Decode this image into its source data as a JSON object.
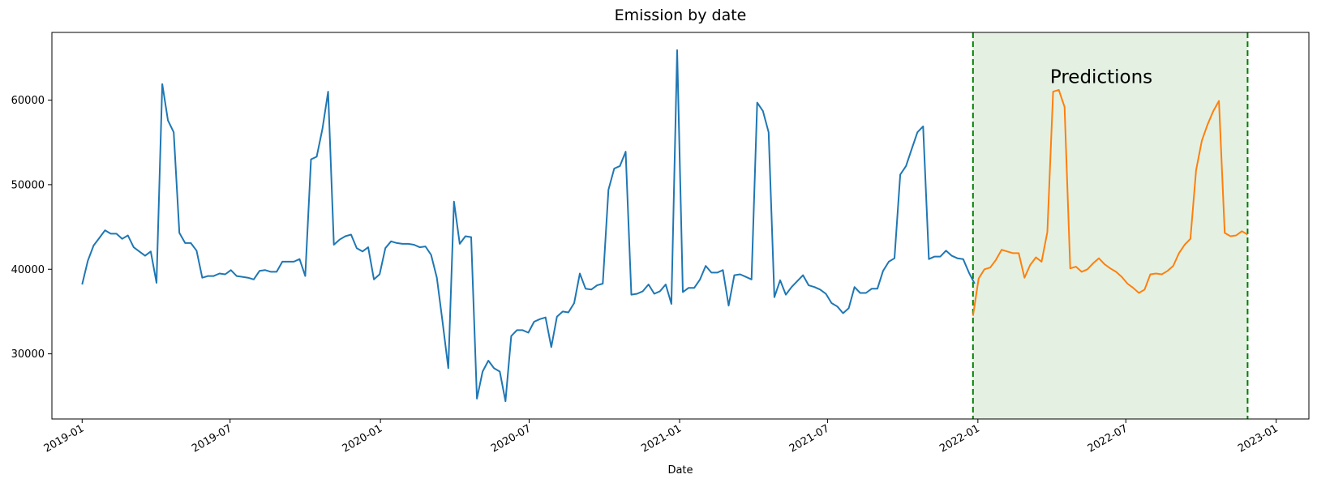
{
  "chart_data": {
    "type": "line",
    "title": "Emission by date",
    "xlabel": "Date",
    "ylabel": "",
    "ylim": [
      22300,
      68000
    ],
    "xlim": [
      "2018-11-25",
      "2023-02-10"
    ],
    "grid": false,
    "x_ticks": [
      "2019-01",
      "2019-07",
      "2020-01",
      "2020-07",
      "2021-01",
      "2021-07",
      "2022-01",
      "2022-07",
      "2023-01"
    ],
    "y_ticks": [
      30000,
      40000,
      50000,
      60000
    ],
    "colors": {
      "actual": "#1f77b4",
      "predicted": "#ff7f0e",
      "shade": "#e4f1e2",
      "vline": "#008000"
    },
    "annotation": {
      "text": "Predictions",
      "x": "2022-06-01",
      "y": 62000
    },
    "prediction_window": [
      "2021-12-26",
      "2022-11-27"
    ],
    "actual": {
      "start": "2019-01-01",
      "interval_days": 7,
      "values": [
        38200,
        41000,
        42800,
        43700,
        44600,
        44200,
        44200,
        43600,
        44000,
        42600,
        42100,
        41600,
        42100,
        38400,
        61900,
        57600,
        56200,
        44300,
        43100,
        43100,
        42200,
        39000,
        39200,
        39200,
        39500,
        39400,
        39900,
        39200,
        39100,
        39000,
        38800,
        39800,
        39900,
        39700,
        39700,
        40900,
        40900,
        40900,
        41200,
        39200,
        53000,
        53300,
        56600,
        61000,
        42900,
        43500,
        43900,
        44100,
        42500,
        42100,
        42600,
        38800,
        39400,
        42500,
        43300,
        43100,
        43000,
        43000,
        42900,
        42600,
        42700,
        41700,
        39000,
        33800,
        28300,
        48000,
        43000,
        43900,
        43800,
        24700,
        27900,
        29200,
        28300,
        27900,
        24400,
        32100,
        32800,
        32800,
        32500,
        33800,
        34100,
        34300,
        30800,
        34400,
        35000,
        34900,
        36000,
        39500,
        37700,
        37600,
        38100,
        38300,
        49400,
        51900,
        52200,
        53900,
        37000,
        37100,
        37400,
        38200,
        37100,
        37400,
        38200,
        35900,
        65900,
        37300,
        37800,
        37800,
        38800,
        40400,
        39600,
        39600,
        39900,
        35700,
        39300,
        39400,
        39100,
        38800,
        59700,
        58700,
        56200,
        36700,
        38700,
        37000,
        37900,
        38600,
        39300,
        38100,
        37900,
        37600,
        37100,
        36000,
        35600,
        34800,
        35400,
        37900,
        37200,
        37200,
        37700,
        37700,
        39800,
        40900,
        41300,
        51200,
        52200,
        54200,
        56200,
        56900,
        41200,
        41500,
        41500,
        42200,
        41600,
        41300,
        41200,
        39600,
        38300
      ]
    },
    "predicted": {
      "start": "2021-12-26",
      "interval_days": 7,
      "values": [
        34500,
        38900,
        40000,
        40200,
        41100,
        42300,
        42100,
        41900,
        41900,
        39000,
        40500,
        41400,
        40900,
        44400,
        61000,
        61200,
        59200,
        40100,
        40300,
        39700,
        40000,
        40700,
        41300,
        40600,
        40100,
        39700,
        39100,
        38300,
        37800,
        37200,
        37600,
        39400,
        39500,
        39400,
        39800,
        40400,
        41900,
        42900,
        43600,
        51700,
        55200,
        57100,
        58700,
        59900,
        44300,
        43900,
        44000,
        44500,
        44100
      ]
    }
  }
}
